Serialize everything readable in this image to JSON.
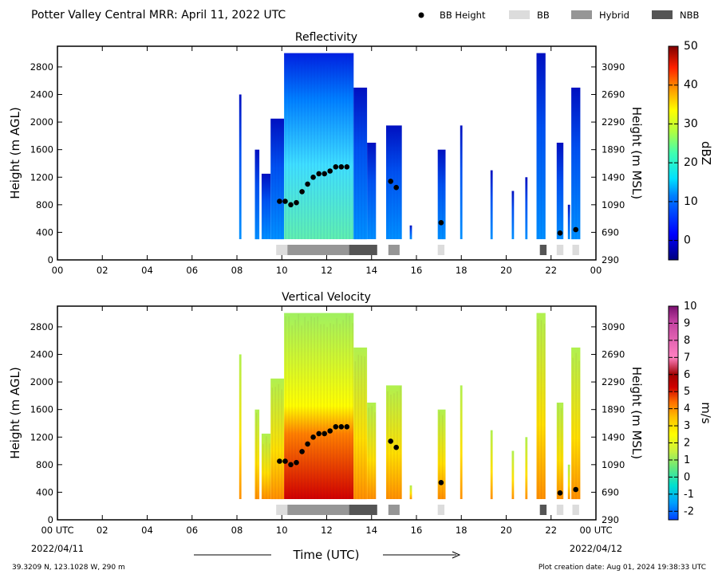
{
  "header": {
    "title": "Potter Valley Central MRR:  April 11, 2022 UTC",
    "legend": [
      {
        "label": "BB Height",
        "kind": "dot",
        "color": "#000000"
      },
      {
        "label": "BB",
        "kind": "box",
        "color": "#dcdcdc"
      },
      {
        "label": "Hybrid",
        "kind": "box",
        "color": "#969696"
      },
      {
        "label": "NBB",
        "kind": "box",
        "color": "#555555"
      }
    ]
  },
  "footer": {
    "location": "39.3209 N, 123.1028 W, 290 m",
    "created": "Plot creation date: Aug 01, 2024 19:38:33 UTC",
    "xlabel": "Time (UTC)",
    "start_date": "2022/04/11",
    "end_date": "2022/04/12"
  },
  "chart_data": [
    {
      "type": "heatmap",
      "title": "Reflectivity",
      "ylabel": "Height (m AGL)",
      "y2label": "Height (m MSL)",
      "xlim": [
        0,
        24
      ],
      "ylim": [
        0,
        3100
      ],
      "xticks": [
        "00",
        "02",
        "04",
        "06",
        "08",
        "10",
        "12",
        "14",
        "16",
        "18",
        "20",
        "22",
        "00"
      ],
      "yticks": [
        0,
        400,
        800,
        1200,
        1600,
        2000,
        2400,
        2800
      ],
      "y2ticks": [
        290,
        690,
        1090,
        1490,
        1890,
        2290,
        2690,
        3090
      ],
      "colorbar": {
        "label": "dBZ",
        "min": -5,
        "max": 50,
        "ticks": [
          0,
          10,
          20,
          30,
          40,
          50
        ]
      },
      "field": "reflectivity"
    },
    {
      "type": "heatmap",
      "title": "Vertical Velocity",
      "ylabel": "Height (m AGL)",
      "y2label": "Height (m MSL)",
      "xlim": [
        0,
        24
      ],
      "ylim": [
        0,
        3100
      ],
      "xticks": [
        "00 UTC",
        "02",
        "04",
        "06",
        "08",
        "10",
        "12",
        "14",
        "16",
        "18",
        "20",
        "22",
        "00 UTC"
      ],
      "yticks": [
        0,
        400,
        800,
        1200,
        1600,
        2000,
        2400,
        2800
      ],
      "y2ticks": [
        290,
        690,
        1090,
        1490,
        1890,
        2290,
        2690,
        3090
      ],
      "colorbar": {
        "label": "m/s",
        "min": -2.5,
        "max": 10,
        "ticks": [
          -2,
          -1,
          0,
          1,
          2,
          3,
          4,
          5,
          6,
          7,
          8,
          9,
          10
        ]
      },
      "field": "velocity"
    }
  ],
  "bright_band": {
    "points": [
      {
        "t": 9.9,
        "h": 850
      },
      {
        "t": 10.15,
        "h": 850
      },
      {
        "t": 10.4,
        "h": 800
      },
      {
        "t": 10.65,
        "h": 830
      },
      {
        "t": 10.9,
        "h": 990
      },
      {
        "t": 11.15,
        "h": 1100
      },
      {
        "t": 11.4,
        "h": 1200
      },
      {
        "t": 11.65,
        "h": 1250
      },
      {
        "t": 11.9,
        "h": 1250
      },
      {
        "t": 12.15,
        "h": 1290
      },
      {
        "t": 12.4,
        "h": 1350
      },
      {
        "t": 12.65,
        "h": 1350
      },
      {
        "t": 12.9,
        "h": 1350
      },
      {
        "t": 14.85,
        "h": 1140
      },
      {
        "t": 15.1,
        "h": 1050
      },
      {
        "t": 17.1,
        "h": 540
      },
      {
        "t": 22.4,
        "h": 390
      },
      {
        "t": 23.1,
        "h": 440
      }
    ],
    "segments": [
      {
        "start": 9.75,
        "end": 10.25,
        "cls": "BB"
      },
      {
        "start": 10.25,
        "end": 13.0,
        "cls": "Hybrid"
      },
      {
        "start": 13.0,
        "end": 14.25,
        "cls": "NBB"
      },
      {
        "start": 14.75,
        "end": 15.25,
        "cls": "Hybrid"
      },
      {
        "start": 16.95,
        "end": 17.25,
        "cls": "BB"
      },
      {
        "start": 21.5,
        "end": 21.8,
        "cls": "NBB"
      },
      {
        "start": 22.25,
        "end": 22.55,
        "cls": "BB"
      },
      {
        "start": 22.95,
        "end": 23.25,
        "cls": "BB"
      }
    ]
  },
  "echo_columns": [
    {
      "start": 8.1,
      "end": 8.2,
      "top": 2400,
      "base": 300
    },
    {
      "start": 8.8,
      "end": 9.0,
      "top": 1600,
      "base": 300
    },
    {
      "start": 9.1,
      "end": 9.5,
      "top": 1250,
      "base": 300
    },
    {
      "start": 9.5,
      "end": 10.1,
      "top": 2050,
      "base": 300
    },
    {
      "start": 10.1,
      "end": 13.2,
      "top": 3000,
      "base": 300
    },
    {
      "start": 13.2,
      "end": 13.8,
      "top": 2500,
      "base": 300
    },
    {
      "start": 13.8,
      "end": 14.2,
      "top": 1700,
      "base": 300
    },
    {
      "start": 14.65,
      "end": 15.35,
      "top": 1950,
      "base": 300
    },
    {
      "start": 15.7,
      "end": 15.8,
      "top": 500,
      "base": 300
    },
    {
      "start": 16.95,
      "end": 17.3,
      "top": 1600,
      "base": 300
    },
    {
      "start": 17.95,
      "end": 18.05,
      "top": 1950,
      "base": 300
    },
    {
      "start": 19.3,
      "end": 19.4,
      "top": 1300,
      "base": 300
    },
    {
      "start": 20.25,
      "end": 20.35,
      "top": 1000,
      "base": 300
    },
    {
      "start": 20.85,
      "end": 20.95,
      "top": 1200,
      "base": 300
    },
    {
      "start": 21.35,
      "end": 21.75,
      "top": 3000,
      "base": 300
    },
    {
      "start": 22.25,
      "end": 22.55,
      "top": 1700,
      "base": 300
    },
    {
      "start": 22.75,
      "end": 22.85,
      "top": 800,
      "base": 300
    },
    {
      "start": 22.9,
      "end": 23.3,
      "top": 2500,
      "base": 300
    }
  ]
}
